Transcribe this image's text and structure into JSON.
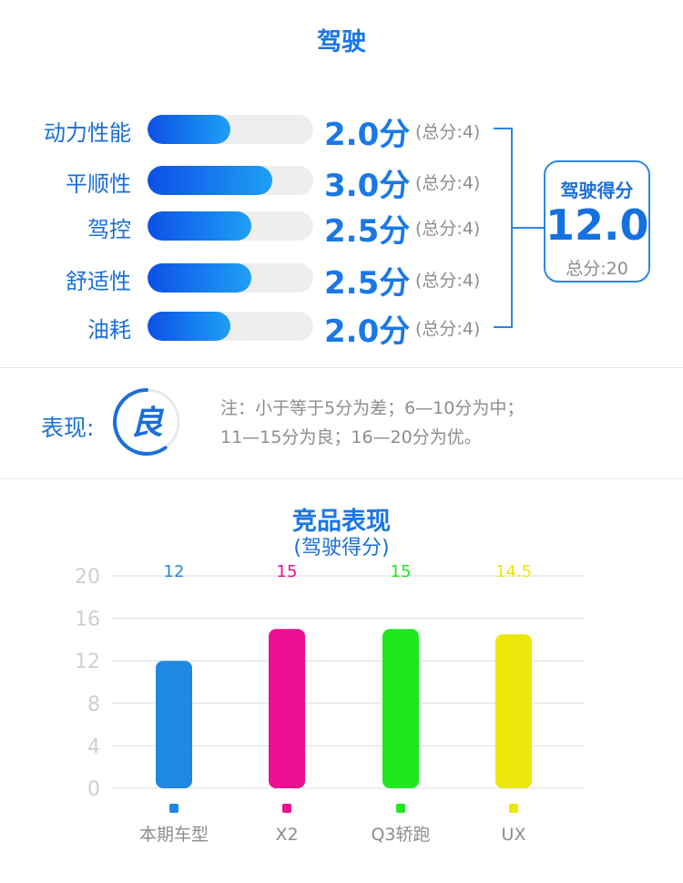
{
  "driving": {
    "title": "驾驶",
    "metrics": [
      {
        "label": "动力性能",
        "score": "2.0分",
        "max": "(总分:4)",
        "value": 2.0
      },
      {
        "label": "平顺性",
        "score": "3.0分",
        "max": "(总分:4)",
        "value": 3.0
      },
      {
        "label": "驾控",
        "score": "2.5分",
        "max": "(总分:4)",
        "value": 2.5
      },
      {
        "label": "舒适性",
        "score": "2.5分",
        "max": "(总分:4)",
        "value": 2.5
      },
      {
        "label": "油耗",
        "score": "2.0分",
        "max": "(总分:4)",
        "value": 2.0
      }
    ],
    "metric_max": 4,
    "total": {
      "label": "驾驶得分",
      "value": "12.0",
      "max": "总分:20"
    }
  },
  "performance": {
    "label": "表现:",
    "rating": "良",
    "rating_fraction": 0.6,
    "note_line1": "注：小于等于5分为差；6—10分为中；",
    "note_line2": "11—15分为良；16—20分为优。"
  },
  "chart_data": {
    "type": "bar",
    "title": "竞品表现",
    "subtitle": "(驾驶得分)",
    "categories": [
      "本期车型",
      "X2",
      "Q3轿跑",
      "UX"
    ],
    "values": [
      12,
      15,
      15,
      14.5
    ],
    "value_labels": [
      "12",
      "15",
      "15",
      "14.5"
    ],
    "colors": [
      "#1e88e5",
      "#ec0f93",
      "#1ee81e",
      "#ece70a"
    ],
    "ylim": [
      0,
      20
    ],
    "yticks": [
      0,
      4,
      8,
      12,
      16,
      20
    ],
    "grid": true,
    "legend": "bottom"
  }
}
